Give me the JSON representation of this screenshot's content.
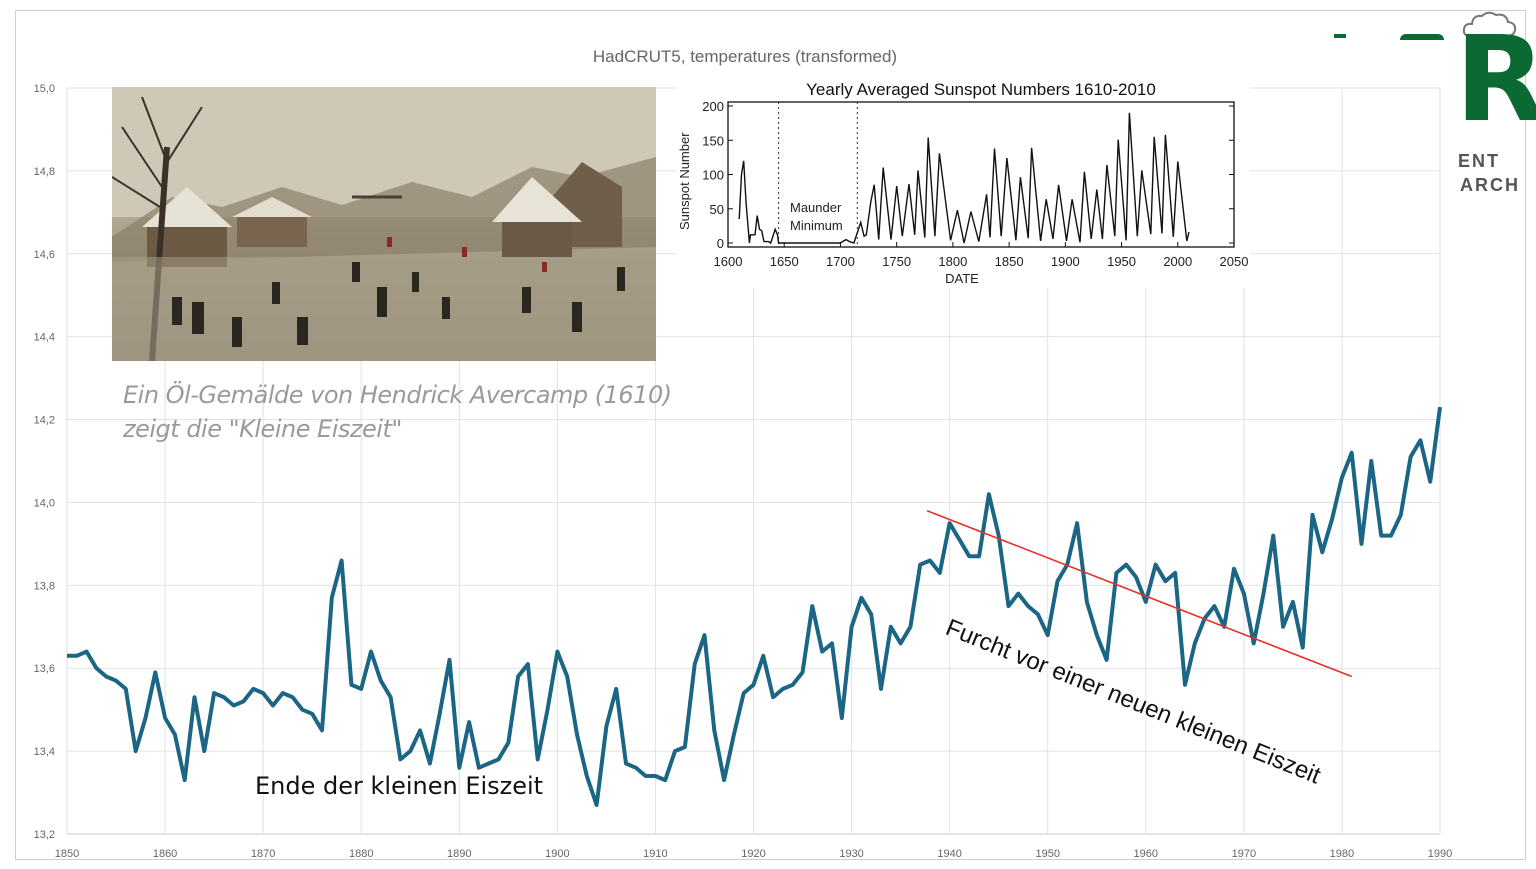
{
  "chart_data": [
    {
      "type": "line",
      "title": "HadCRUT5, temperatures (transformed)",
      "xlabel": "",
      "ylabel": "",
      "xlim": [
        1850,
        1990
      ],
      "ylim": [
        13.2,
        15.0
      ],
      "grid": true,
      "x_ticks": [
        "1850",
        "1860",
        "1870",
        "1880",
        "1890",
        "1900",
        "1910",
        "1920",
        "1930",
        "1940",
        "1950",
        "1960",
        "1970",
        "1980",
        "1990"
      ],
      "y_ticks": [
        "13,2",
        "13,4",
        "13,6",
        "13,8",
        "14,0",
        "14,2",
        "14,4",
        "14,6",
        "14,8",
        "15,0"
      ],
      "series": [
        {
          "name": "temperature",
          "color": "#1b6585",
          "x_start": 1850,
          "values": [
            13.63,
            13.63,
            13.64,
            13.6,
            13.58,
            13.57,
            13.55,
            13.4,
            13.48,
            13.59,
            13.48,
            13.44,
            13.33,
            13.53,
            13.4,
            13.54,
            13.53,
            13.51,
            13.52,
            13.55,
            13.54,
            13.51,
            13.54,
            13.53,
            13.5,
            13.49,
            13.45,
            13.77,
            13.86,
            13.56,
            13.55,
            13.64,
            13.57,
            13.53,
            13.38,
            13.4,
            13.45,
            13.37,
            13.49,
            13.62,
            13.36,
            13.47,
            13.36,
            13.37,
            13.38,
            13.42,
            13.58,
            13.61,
            13.38,
            13.5,
            13.64,
            13.58,
            13.44,
            13.34,
            13.27,
            13.46,
            13.55,
            13.37,
            13.36,
            13.34,
            13.34,
            13.33,
            13.4,
            13.41,
            13.61,
            13.68,
            13.45,
            13.33,
            13.44,
            13.54,
            13.56,
            13.63,
            13.53,
            13.55,
            13.56,
            13.59,
            13.75,
            13.64,
            13.66,
            13.48,
            13.7,
            13.77,
            13.73,
            13.55,
            13.7,
            13.66,
            13.7,
            13.85,
            13.86,
            13.83,
            13.95,
            13.91,
            13.87,
            13.87,
            14.02,
            13.92,
            13.75,
            13.78,
            13.75,
            13.73,
            13.68,
            13.81,
            13.85,
            13.95,
            13.76,
            13.68,
            13.62,
            13.83,
            13.85,
            13.82,
            13.76,
            13.85,
            13.81,
            13.83,
            13.56,
            13.66,
            13.72,
            13.75,
            13.7,
            13.84,
            13.78,
            13.66,
            13.78,
            13.92,
            13.7,
            13.76,
            13.65,
            13.97,
            13.88,
            13.96,
            14.06,
            14.12,
            13.9,
            14.1,
            13.92,
            13.92,
            13.97,
            14.11,
            14.15,
            14.05,
            14.23
          ]
        }
      ],
      "trendline": {
        "color": "#e8302a",
        "from": [
          1937.7,
          13.98
        ],
        "to": [
          1981.0,
          13.58
        ]
      },
      "annotations": [
        "Ende der kleinen Eiszeit",
        "Furcht vor einer neuen kleinen Eiszeit"
      ]
    },
    {
      "type": "line",
      "title": "Yearly Averaged Sunspot Numbers 1610-2010",
      "xlabel": "DATE",
      "ylabel": "Sunspot Number",
      "xlim": [
        1600,
        2050
      ],
      "ylim": [
        0,
        200
      ],
      "x_ticks": [
        "1600",
        "1650",
        "1700",
        "1750",
        "1800",
        "1850",
        "1900",
        "1950",
        "2000",
        "2050"
      ],
      "y_ticks": [
        "0",
        "50",
        "100",
        "150",
        "200"
      ],
      "maunder_minimum": {
        "label": [
          "Maunder",
          "Minimum"
        ],
        "start": 1645,
        "end": 1715
      },
      "points": [
        [
          1610,
          35
        ],
        [
          1612,
          100
        ],
        [
          1614,
          120
        ],
        [
          1616,
          60
        ],
        [
          1619,
          0
        ],
        [
          1620,
          12
        ],
        [
          1624,
          12
        ],
        [
          1626,
          40
        ],
        [
          1628,
          20
        ],
        [
          1630,
          18
        ],
        [
          1632,
          2
        ],
        [
          1636,
          2
        ],
        [
          1638,
          0
        ],
        [
          1642,
          20
        ],
        [
          1644,
          12
        ],
        [
          1645,
          0
        ],
        [
          1660,
          0
        ],
        [
          1700,
          0
        ],
        [
          1703,
          3
        ],
        [
          1705,
          5
        ],
        [
          1708,
          2
        ],
        [
          1712,
          0
        ],
        [
          1718,
          30
        ],
        [
          1721,
          10
        ],
        [
          1723,
          12
        ],
        [
          1727,
          60
        ],
        [
          1730,
          85
        ],
        [
          1734,
          5
        ],
        [
          1738,
          110
        ],
        [
          1745,
          5
        ],
        [
          1750,
          83
        ],
        [
          1755,
          10
        ],
        [
          1761,
          86
        ],
        [
          1766,
          12
        ],
        [
          1769,
          106
        ],
        [
          1775,
          8
        ],
        [
          1778,
          154
        ],
        [
          1784,
          10
        ],
        [
          1788,
          131
        ],
        [
          1798,
          4
        ],
        [
          1804,
          48
        ],
        [
          1810,
          0
        ],
        [
          1816,
          46
        ],
        [
          1823,
          2
        ],
        [
          1830,
          71
        ],
        [
          1833,
          8
        ],
        [
          1837,
          138
        ],
        [
          1843,
          10
        ],
        [
          1848,
          124
        ],
        [
          1856,
          4
        ],
        [
          1860,
          96
        ],
        [
          1867,
          7
        ],
        [
          1870,
          139
        ],
        [
          1878,
          3
        ],
        [
          1883,
          64
        ],
        [
          1889,
          6
        ],
        [
          1894,
          85
        ],
        [
          1901,
          3
        ],
        [
          1906,
          64
        ],
        [
          1913,
          1
        ],
        [
          1917,
          104
        ],
        [
          1923,
          6
        ],
        [
          1928,
          78
        ],
        [
          1933,
          6
        ],
        [
          1937,
          114
        ],
        [
          1944,
          10
        ],
        [
          1947,
          151
        ],
        [
          1954,
          4
        ],
        [
          1957,
          190
        ],
        [
          1964,
          10
        ],
        [
          1968,
          106
        ],
        [
          1976,
          13
        ],
        [
          1979,
          155
        ],
        [
          1986,
          14
        ],
        [
          1989,
          158
        ],
        [
          1996,
          9
        ],
        [
          2000,
          119
        ],
        [
          2008,
          3
        ],
        [
          2010,
          16
        ]
      ]
    }
  ],
  "painting_caption": {
    "line1": "Ein Öl-Gemälde von Hendrick Avercamp (1610)",
    "line2": "zeigt die \"Kleine Eiszeit\""
  },
  "logo": {
    "letter": "R",
    "line1": "ENT",
    "line2": "ARCH",
    "icon": "cloud-icon",
    "color": "#0b6a33"
  }
}
